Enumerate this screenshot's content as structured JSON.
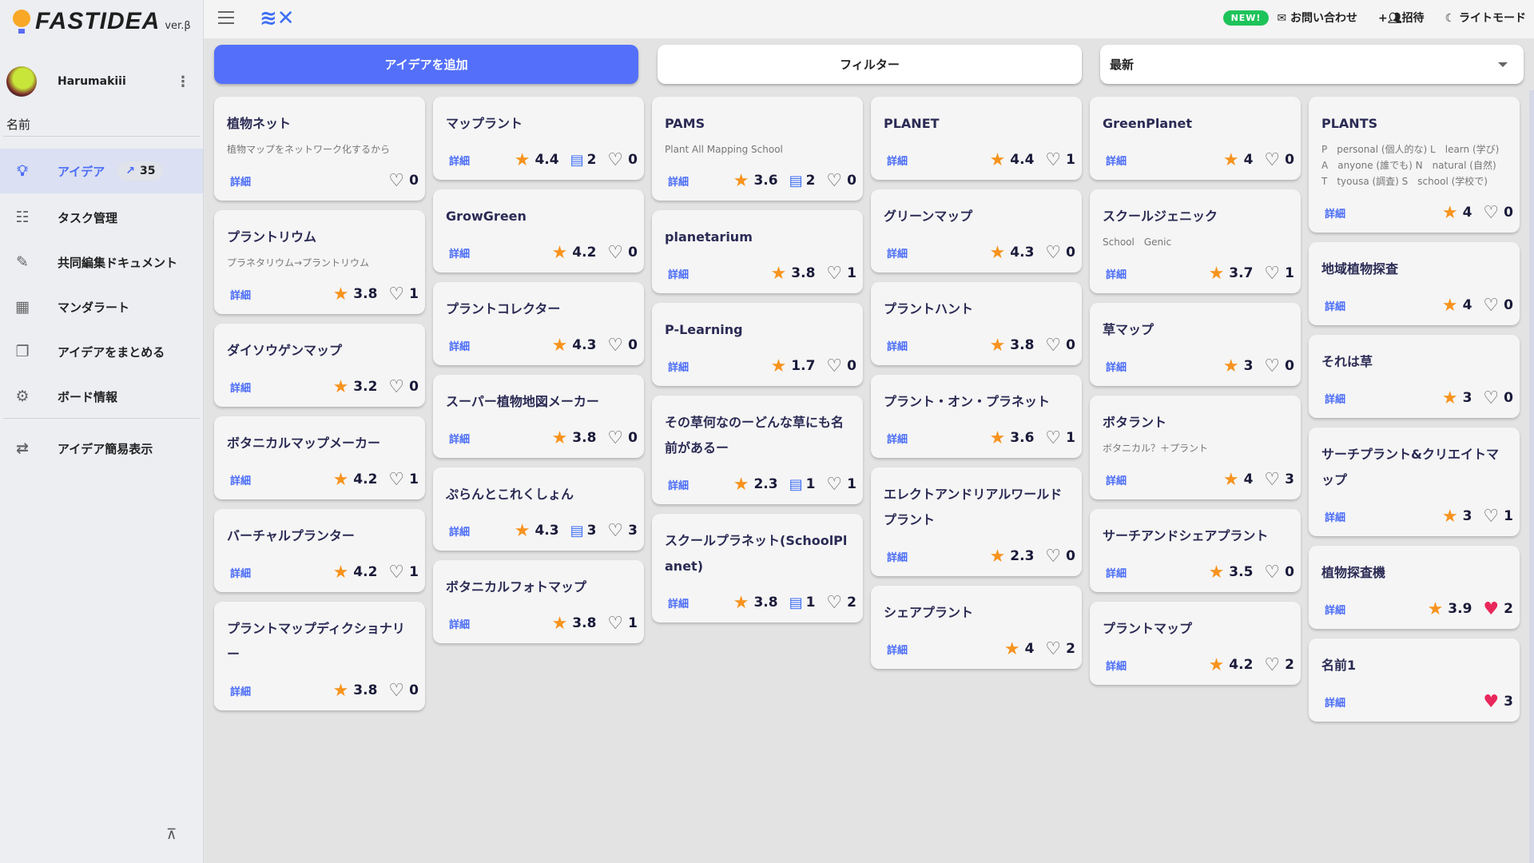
{
  "app": {
    "name": "FASTIDEA",
    "version": "ver.β"
  },
  "user": {
    "name": "Harumakiii"
  },
  "sidebar": {
    "section_label": "名前",
    "items": [
      {
        "label": "アイデア",
        "icon": "lightbulb-icon",
        "badge": "35",
        "active": true
      },
      {
        "label": "タスク管理",
        "icon": "task-list-icon"
      },
      {
        "label": "共同編集ドキュメント",
        "icon": "document-edit-icon"
      },
      {
        "label": "マンダラート",
        "icon": "grid-icon"
      },
      {
        "label": "アイデアをまとめる",
        "icon": "documents-icon"
      },
      {
        "label": "ボード情報",
        "icon": "gear-icon"
      },
      {
        "label": "アイデア簡易表示",
        "icon": "swap-icon"
      }
    ]
  },
  "topbar": {
    "new_badge": "NEW!",
    "contact": "お問い合わせ",
    "invite": "招待",
    "light_mode": "ライトモード"
  },
  "toolbar": {
    "add": "アイデアを追加",
    "filter": "フィルター",
    "sort": "最新"
  },
  "detail_label": "詳細",
  "colors": {
    "accent": "#5470fa",
    "star": "#f7931e",
    "liked": "#e8275a",
    "new": "#1ec35a"
  },
  "columns": [
    [
      {
        "title": "植物ネット",
        "desc": "植物マップをネットワーク化するから",
        "likes": "0"
      },
      {
        "title": "プラントリウム",
        "desc": "プラネタリウム→プラントリウム",
        "rating": "3.8",
        "likes": "1"
      },
      {
        "title": "ダイソウゲンマップ",
        "rating": "3.2",
        "likes": "0"
      },
      {
        "title": "ボタニカルマップメーカー",
        "rating": "4.2",
        "likes": "1"
      },
      {
        "title": "バーチャルプランター",
        "rating": "4.2",
        "likes": "1"
      },
      {
        "title": "プラントマップディクショナリー",
        "rating": "3.8",
        "likes": "0"
      }
    ],
    [
      {
        "title": "マップラント",
        "rating": "4.4",
        "comments": "2",
        "likes": "0"
      },
      {
        "title": "GrowGreen",
        "rating": "4.2",
        "likes": "0"
      },
      {
        "title": "プラントコレクター",
        "rating": "4.3",
        "likes": "0"
      },
      {
        "title": "スーパー植物地図メーカー",
        "rating": "3.8",
        "likes": "0"
      },
      {
        "title": "ぷらんとこれくしょん",
        "rating": "4.3",
        "comments": "3",
        "likes": "3"
      },
      {
        "title": "ボタニカルフォトマップ",
        "rating": "3.8",
        "likes": "1"
      }
    ],
    [
      {
        "title": "PAMS",
        "desc": "Plant All Mapping School",
        "rating": "3.6",
        "comments": "2",
        "likes": "0"
      },
      {
        "title": "planetarium",
        "rating": "3.8",
        "likes": "1"
      },
      {
        "title": "P-Learning",
        "rating": "1.7",
        "likes": "0"
      },
      {
        "title": "その草何なのーどんな草にも名前があるー",
        "rating": "2.3",
        "comments": "1",
        "likes": "1"
      },
      {
        "title": "スクールプラネット(SchoolPlanet)",
        "rating": "3.8",
        "comments": "1",
        "likes": "2"
      }
    ],
    [
      {
        "title": "PLANET",
        "rating": "4.4",
        "likes": "1"
      },
      {
        "title": "グリーンマップ",
        "rating": "4.3",
        "likes": "0"
      },
      {
        "title": "プラントハント",
        "rating": "3.8",
        "likes": "0"
      },
      {
        "title": "プラント・オン・プラネット",
        "rating": "3.6",
        "likes": "1"
      },
      {
        "title": "エレクトアンドリアルワールドプラント",
        "rating": "2.3",
        "likes": "0"
      },
      {
        "title": "シェアプラント",
        "rating": "4",
        "likes": "2"
      }
    ],
    [
      {
        "title": "GreenPlanet",
        "rating": "4",
        "likes": "0"
      },
      {
        "title": "スクールジェニック",
        "desc": "School　Genic",
        "rating": "3.7",
        "likes": "1"
      },
      {
        "title": "草マップ",
        "rating": "3",
        "likes": "0"
      },
      {
        "title": "ボタラント",
        "desc": "ボタニカル？＋プラント",
        "rating": "4",
        "likes": "3"
      },
      {
        "title": "サーチアンドシェアプラント",
        "rating": "3.5",
        "likes": "0"
      },
      {
        "title": "プラントマップ",
        "rating": "4.2",
        "likes": "2"
      }
    ],
    [
      {
        "title": "PLANTS",
        "desc": "P　personal (個人的な) L　learn (学び)\nA　anyone (誰でも) N　natural (自然)\nT　tyousa (調査) S　school (学校で)",
        "rating": "4",
        "likes": "0"
      },
      {
        "title": "地域植物探査",
        "rating": "4",
        "likes": "0"
      },
      {
        "title": "それは草",
        "rating": "3",
        "likes": "0"
      },
      {
        "title": "サーチプラント&クリエイトマップ",
        "rating": "3",
        "likes": "1"
      },
      {
        "title": "植物探査機",
        "rating": "3.9",
        "likes": "2",
        "liked": true
      },
      {
        "title": "名前1",
        "likes": "3",
        "liked": true
      }
    ]
  ]
}
